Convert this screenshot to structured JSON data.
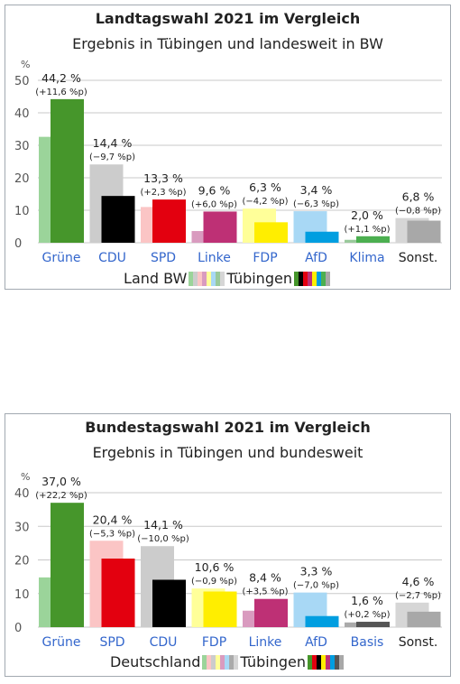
{
  "chart_data": [
    {
      "type": "bar",
      "title": "Landtagswahl 2021 im Vergleich",
      "subtitle": "Ergebnis in Tübingen und landesweit in BW",
      "ylabel": "%",
      "ylim": [
        0,
        50
      ],
      "yticks": [
        "0",
        "10",
        "20",
        "30",
        "40",
        "50"
      ],
      "grid": true,
      "categories": [
        "Grüne",
        "CDU",
        "SPD",
        "Linke",
        "FDP",
        "AfD",
        "Klima",
        "Sonst."
      ],
      "series": [
        {
          "name": "Land BW",
          "values": [
            32.6,
            24.1,
            11.0,
            3.6,
            10.5,
            9.7,
            0.9,
            7.6
          ]
        },
        {
          "name": "Tübingen",
          "values": [
            44.2,
            14.4,
            13.3,
            9.6,
            6.3,
            3.4,
            2.0,
            6.8
          ]
        }
      ],
      "value_labels": [
        "44,2 %",
        "14,4 %",
        "13,3 %",
        "9,6 %",
        "6,3 %",
        "3,4 %",
        "2,0 %",
        "6,8 %"
      ],
      "change_labels": [
        "(+11,6 %p)",
        "(−9,7 %p)",
        "(+2,3 %p)",
        "(+6,0 %p)",
        "(−4,2 %p)",
        "(−6,3 %p)",
        "(+1,1 %p)",
        "(−0,8 %p)"
      ],
      "colors_land": [
        "#9bd49a",
        "#cccccc",
        "#fbc5c5",
        "#d99bbf",
        "#ffff99",
        "#a8d8f5",
        "#99c99b",
        "#d6d6d6"
      ],
      "colors_local": [
        "#46962b",
        "#000000",
        "#e3000f",
        "#be3075",
        "#ffee00",
        "#009ee0",
        "#4caf50",
        "#a8a8a8"
      ],
      "legend": {
        "land_label": "Land BW",
        "local_label": "Tübingen"
      }
    },
    {
      "type": "bar",
      "title": "Bundestagswahl 2021 im Vergleich",
      "subtitle": "Ergebnis in Tübingen und bundesweit",
      "ylabel": "%",
      "ylim": [
        0,
        40
      ],
      "yticks": [
        "0",
        "10",
        "20",
        "30",
        "40"
      ],
      "grid": true,
      "categories": [
        "Grüne",
        "SPD",
        "CDU",
        "FDP",
        "Linke",
        "AfD",
        "Basis",
        "Sonst."
      ],
      "series": [
        {
          "name": "Deutschland",
          "values": [
            14.8,
            25.7,
            24.1,
            11.5,
            4.9,
            10.3,
            1.4,
            7.3
          ]
        },
        {
          "name": "Tübingen",
          "values": [
            37.0,
            20.4,
            14.1,
            10.6,
            8.4,
            3.3,
            1.6,
            4.6
          ]
        }
      ],
      "value_labels": [
        "37,0 %",
        "20,4 %",
        "14,1 %",
        "10,6 %",
        "8,4 %",
        "3,3 %",
        "1,6 %",
        "4,6 %"
      ],
      "change_labels": [
        "(+22,2 %p)",
        "(−5,3 %p)",
        "(−10,0 %p)",
        "(−0,9 %p)",
        "(+3,5 %p)",
        "(−7,0 %p)",
        "(+0,2 %p)",
        "(−2,7 %p)"
      ],
      "colors_land": [
        "#9bd49a",
        "#fbc5c5",
        "#cccccc",
        "#ffff99",
        "#d99bbf",
        "#a8d8f5",
        "#aaaaaa",
        "#d6d6d6"
      ],
      "colors_local": [
        "#46962b",
        "#e3000f",
        "#000000",
        "#ffee00",
        "#be3075",
        "#009ee0",
        "#555555",
        "#a8a8a8"
      ],
      "legend": {
        "land_label": "Deutschland",
        "local_label": "Tübingen"
      }
    }
  ],
  "colors": {
    "category_label": "#3366cc",
    "last_category_label": "#222222",
    "grid": "#c8c8c8",
    "axis_text": "#555555"
  }
}
